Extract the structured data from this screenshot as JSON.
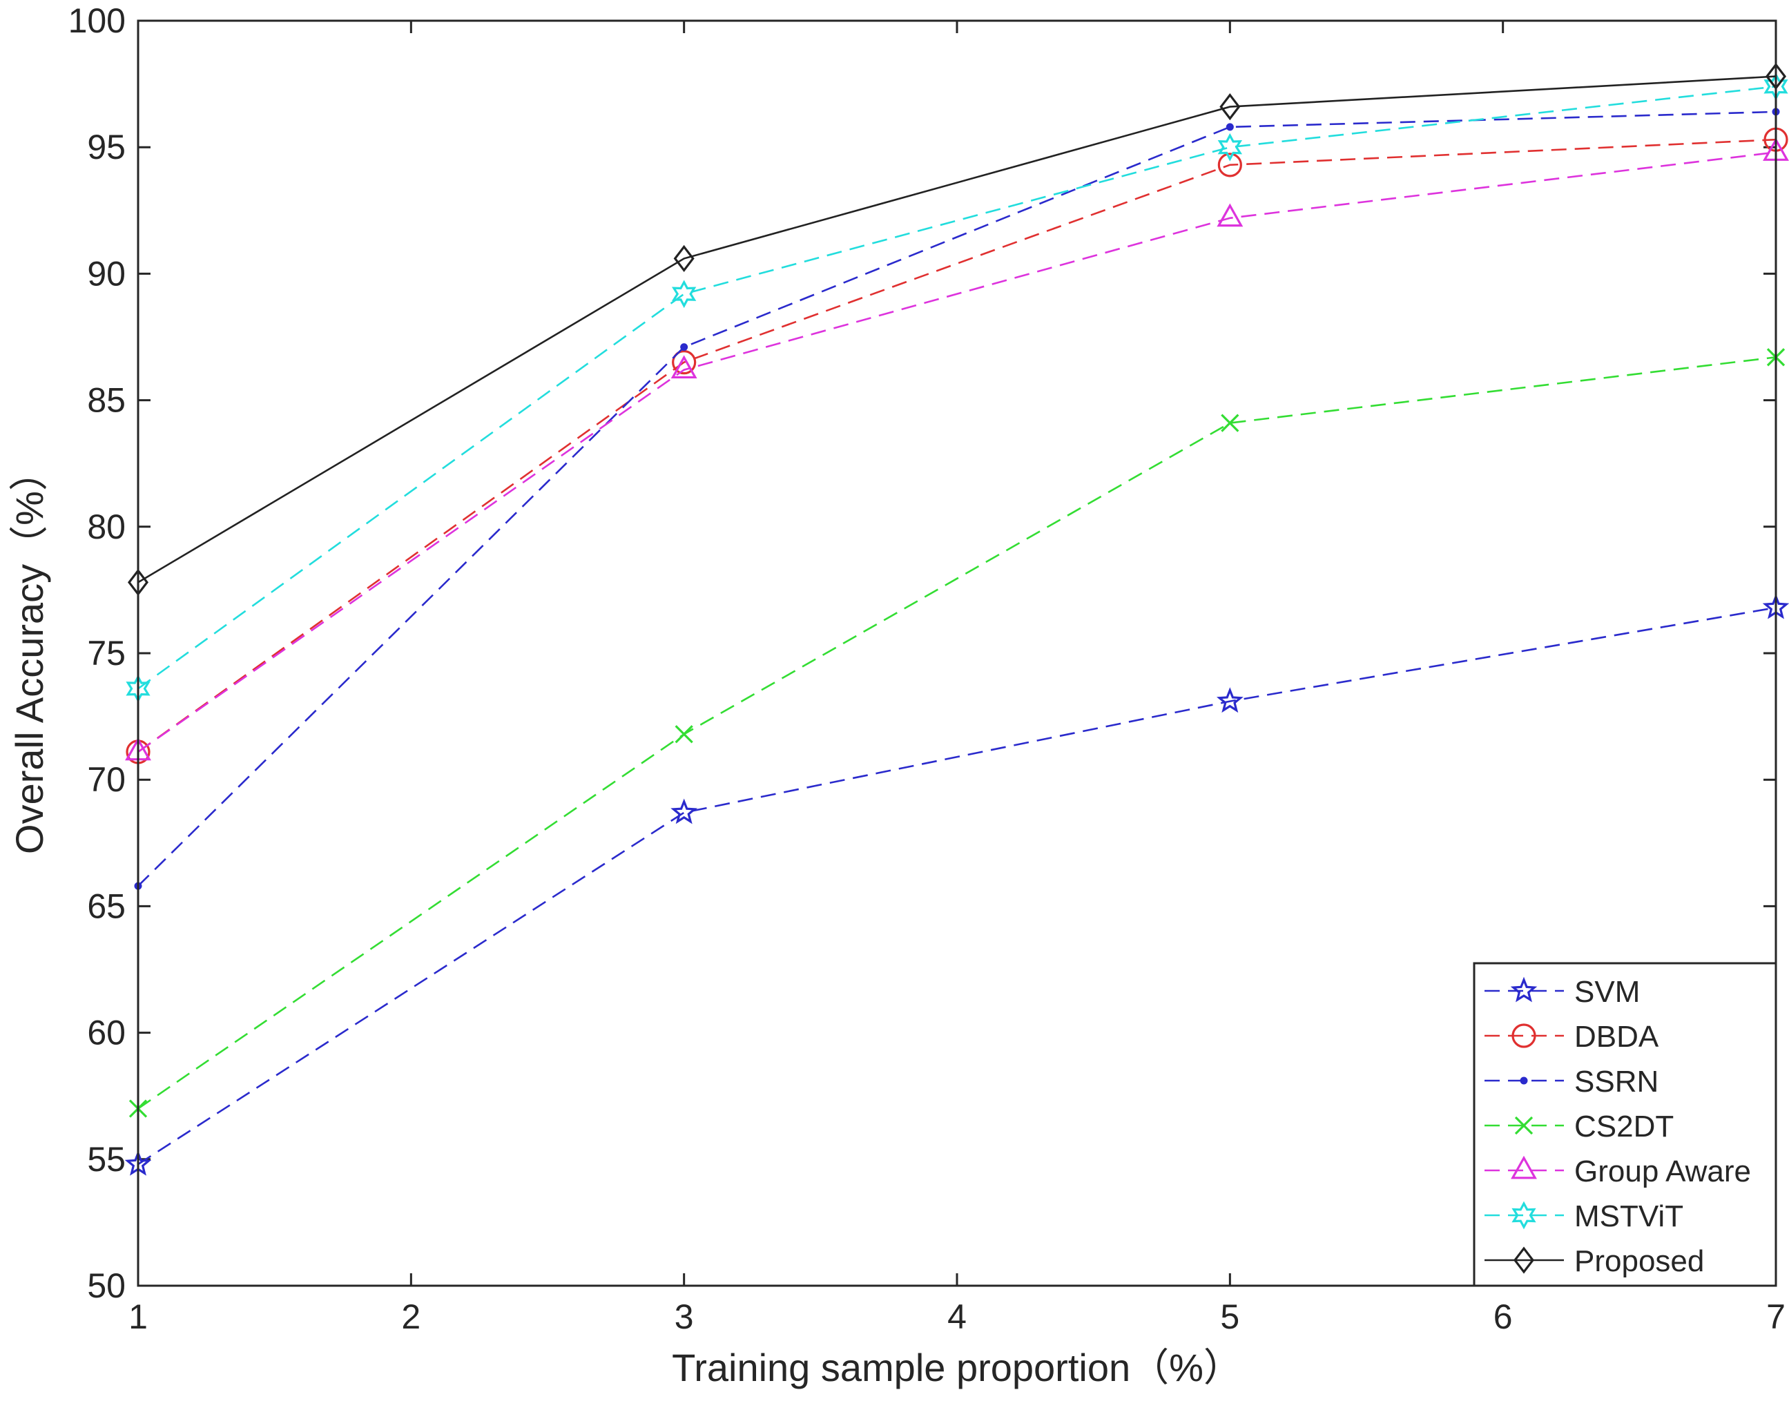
{
  "chart_data": {
    "type": "line",
    "title": "",
    "xlabel": "Training sample proportion（%）",
    "ylabel": "Overall Accuracy（%）",
    "xlim": [
      1,
      7
    ],
    "ylim": [
      50,
      100
    ],
    "xticks": [
      1,
      2,
      3,
      4,
      5,
      6,
      7
    ],
    "yticks": [
      50,
      55,
      60,
      65,
      70,
      75,
      80,
      85,
      90,
      95,
      100
    ],
    "grid": false,
    "legend_position": "bottom-right",
    "x": [
      1,
      3,
      5,
      7
    ],
    "series": [
      {
        "name": "SVM",
        "values": [
          54.8,
          68.7,
          73.1,
          76.8
        ],
        "color": "#2a2acc",
        "dash": "dashed",
        "marker": "pentagram"
      },
      {
        "name": "DBDA",
        "values": [
          71.1,
          86.5,
          94.3,
          95.3
        ],
        "color": "#e03030",
        "dash": "dashed",
        "marker": "circle"
      },
      {
        "name": "SSRN",
        "values": [
          65.8,
          87.1,
          95.8,
          96.4
        ],
        "color": "#2a2acc",
        "dash": "dashed",
        "marker": "dot"
      },
      {
        "name": "CS2DT",
        "values": [
          57.0,
          71.8,
          84.1,
          86.7
        ],
        "color": "#33dd33",
        "dash": "dashed",
        "marker": "x"
      },
      {
        "name": "Group Aware",
        "values": [
          71.1,
          86.2,
          92.2,
          94.8
        ],
        "color": "#dd33dd",
        "dash": "dashed",
        "marker": "triangle"
      },
      {
        "name": "MSTViT",
        "values": [
          73.6,
          89.2,
          95.0,
          97.4
        ],
        "color": "#22dddd",
        "dash": "dashed",
        "marker": "hexagram"
      },
      {
        "name": "Proposed",
        "values": [
          77.8,
          90.6,
          96.6,
          97.8
        ],
        "color": "#222222",
        "dash": "solid",
        "marker": "diamond"
      }
    ]
  }
}
